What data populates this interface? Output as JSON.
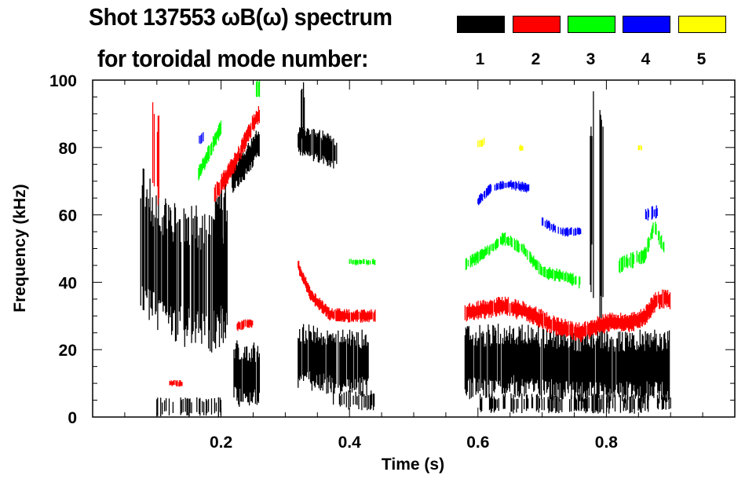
{
  "chart_data": {
    "type": "heatmap",
    "title": "Shot 137553 ωB(ω) spectrum",
    "subtitle": "for toroidal mode number:",
    "xlabel": "Time (s)",
    "ylabel": "Frequency (kHz)",
    "xlim": [
      0,
      1.0
    ],
    "ylim": [
      0,
      100
    ],
    "xticks": [
      0.2,
      0.4,
      0.6,
      0.8
    ],
    "xtick_labels": [
      "0.2",
      "0.4",
      "0.6",
      "0.8"
    ],
    "yticks": [
      0,
      20,
      40,
      60,
      80,
      100
    ],
    "ytick_labels": [
      "0",
      "20",
      "40",
      "60",
      "80",
      "100"
    ],
    "legend": [
      {
        "mode": "1",
        "color": "#000000"
      },
      {
        "mode": "2",
        "color": "#ff0000"
      },
      {
        "mode": "3",
        "color": "#00ff00"
      },
      {
        "mode": "4",
        "color": "#0000ff"
      },
      {
        "mode": "5",
        "color": "#ffff00"
      }
    ],
    "legend_placement": "top-right",
    "features": [
      {
        "mode": 1,
        "path": [
          [
            0.075,
            55
          ],
          [
            0.1,
            45
          ],
          [
            0.14,
            42
          ],
          [
            0.18,
            40
          ],
          [
            0.21,
            42
          ]
        ],
        "half_width": 22,
        "density": 0.75
      },
      {
        "mode": 1,
        "path": [
          [
            0.19,
            45
          ],
          [
            0.215,
            50
          ]
        ],
        "half_width": 25,
        "density": 0.6
      },
      {
        "mode": 1,
        "path": [
          [
            0.215,
            70
          ],
          [
            0.24,
            76
          ],
          [
            0.26,
            82
          ]
        ],
        "half_width": 5,
        "density": 0.8
      },
      {
        "mode": 1,
        "path": [
          [
            0.22,
            13
          ],
          [
            0.26,
            12
          ]
        ],
        "half_width": 10,
        "density": 0.95
      },
      {
        "mode": 1,
        "path": [
          [
            0.1,
            3
          ],
          [
            0.2,
            3
          ]
        ],
        "half_width": 3,
        "density": 0.35
      },
      {
        "mode": 1,
        "path": [
          [
            0.32,
            82
          ],
          [
            0.36,
            80
          ],
          [
            0.38,
            78
          ]
        ],
        "half_width": 5,
        "density": 0.85
      },
      {
        "mode": 1,
        "path": [
          [
            0.32,
            90
          ],
          [
            0.33,
            90
          ]
        ],
        "half_width": 10,
        "density": 0.6
      },
      {
        "mode": 1,
        "path": [
          [
            0.32,
            18
          ],
          [
            0.36,
            17
          ],
          [
            0.4,
            16
          ],
          [
            0.43,
            16
          ]
        ],
        "half_width": 10,
        "density": 0.9
      },
      {
        "mode": 1,
        "path": [
          [
            0.37,
            5
          ],
          [
            0.44,
            5
          ]
        ],
        "half_width": 3,
        "density": 0.4
      },
      {
        "mode": 1,
        "path": [
          [
            0.58,
            16
          ],
          [
            0.65,
            17
          ],
          [
            0.75,
            15
          ],
          [
            0.85,
            15
          ],
          [
            0.9,
            15
          ]
        ],
        "half_width": 11,
        "density": 0.95
      },
      {
        "mode": 1,
        "path": [
          [
            0.6,
            4
          ],
          [
            0.9,
            4
          ]
        ],
        "half_width": 3,
        "density": 0.45
      },
      {
        "mode": 1,
        "path": [
          [
            0.775,
            65
          ],
          [
            0.78,
            65
          ]
        ],
        "half_width": 33,
        "density": 0.8
      },
      {
        "mode": 1,
        "path": [
          [
            0.79,
            55
          ],
          [
            0.795,
            55
          ]
        ],
        "half_width": 40,
        "density": 0.8
      },
      {
        "mode": 2,
        "path": [
          [
            0.09,
            85
          ],
          [
            0.105,
            75
          ]
        ],
        "half_width": 15,
        "density": 0.4
      },
      {
        "mode": 2,
        "path": [
          [
            0.19,
            66
          ],
          [
            0.22,
            75
          ],
          [
            0.25,
            87
          ],
          [
            0.26,
            90
          ]
        ],
        "half_width": 3,
        "density": 0.9
      },
      {
        "mode": 2,
        "path": [
          [
            0.225,
            27
          ],
          [
            0.25,
            28
          ]
        ],
        "half_width": 1.5,
        "density": 0.8
      },
      {
        "mode": 2,
        "path": [
          [
            0.12,
            10
          ],
          [
            0.14,
            10
          ]
        ],
        "half_width": 1,
        "density": 0.7
      },
      {
        "mode": 2,
        "path": [
          [
            0.32,
            45
          ],
          [
            0.34,
            36
          ],
          [
            0.37,
            30.5
          ],
          [
            0.4,
            30
          ],
          [
            0.44,
            30
          ]
        ],
        "half_width": 2,
        "density": 0.95
      },
      {
        "mode": 2,
        "path": [
          [
            0.58,
            31
          ],
          [
            0.64,
            33
          ],
          [
            0.68,
            31
          ],
          [
            0.72,
            27
          ],
          [
            0.76,
            25
          ],
          [
            0.8,
            28
          ],
          [
            0.84,
            28
          ],
          [
            0.86,
            30
          ],
          [
            0.88,
            35
          ],
          [
            0.9,
            35
          ]
        ],
        "half_width": 3,
        "density": 0.95
      },
      {
        "mode": 3,
        "path": [
          [
            0.165,
            72
          ],
          [
            0.18,
            78
          ],
          [
            0.2,
            86
          ]
        ],
        "half_width": 2.5,
        "density": 0.8
      },
      {
        "mode": 3,
        "path": [
          [
            0.255,
            98
          ],
          [
            0.26,
            97
          ]
        ],
        "half_width": 3,
        "density": 0.8
      },
      {
        "mode": 3,
        "path": [
          [
            0.4,
            46
          ],
          [
            0.44,
            46
          ]
        ],
        "half_width": 1,
        "density": 0.7
      },
      {
        "mode": 3,
        "path": [
          [
            0.58,
            45
          ],
          [
            0.62,
            50
          ],
          [
            0.64,
            53
          ],
          [
            0.67,
            50
          ],
          [
            0.7,
            43
          ],
          [
            0.73,
            42
          ],
          [
            0.76,
            40
          ]
        ],
        "half_width": 2,
        "density": 0.75
      },
      {
        "mode": 3,
        "path": [
          [
            0.82,
            45
          ],
          [
            0.86,
            48
          ],
          [
            0.875,
            57
          ],
          [
            0.89,
            50
          ]
        ],
        "half_width": 2.5,
        "density": 0.7
      },
      {
        "mode": 4,
        "path": [
          [
            0.6,
            64
          ],
          [
            0.62,
            68
          ],
          [
            0.65,
            69
          ],
          [
            0.68,
            68
          ]
        ],
        "half_width": 1.5,
        "density": 0.75
      },
      {
        "mode": 4,
        "path": [
          [
            0.7,
            58
          ],
          [
            0.73,
            55
          ],
          [
            0.76,
            55
          ]
        ],
        "half_width": 1.5,
        "density": 0.6
      },
      {
        "mode": 4,
        "path": [
          [
            0.86,
            60
          ],
          [
            0.88,
            61
          ]
        ],
        "half_width": 2,
        "density": 0.6
      },
      {
        "mode": 4,
        "path": [
          [
            0.165,
            82
          ],
          [
            0.175,
            83
          ]
        ],
        "half_width": 2,
        "density": 0.5
      },
      {
        "mode": 5,
        "path": [
          [
            0.6,
            81
          ],
          [
            0.61,
            82
          ]
        ],
        "half_width": 1.5,
        "density": 0.7
      },
      {
        "mode": 5,
        "path": [
          [
            0.665,
            80
          ],
          [
            0.67,
            80
          ]
        ],
        "half_width": 1,
        "density": 0.7
      },
      {
        "mode": 5,
        "path": [
          [
            0.85,
            80
          ],
          [
            0.855,
            80
          ]
        ],
        "half_width": 1,
        "density": 0.7
      }
    ]
  }
}
